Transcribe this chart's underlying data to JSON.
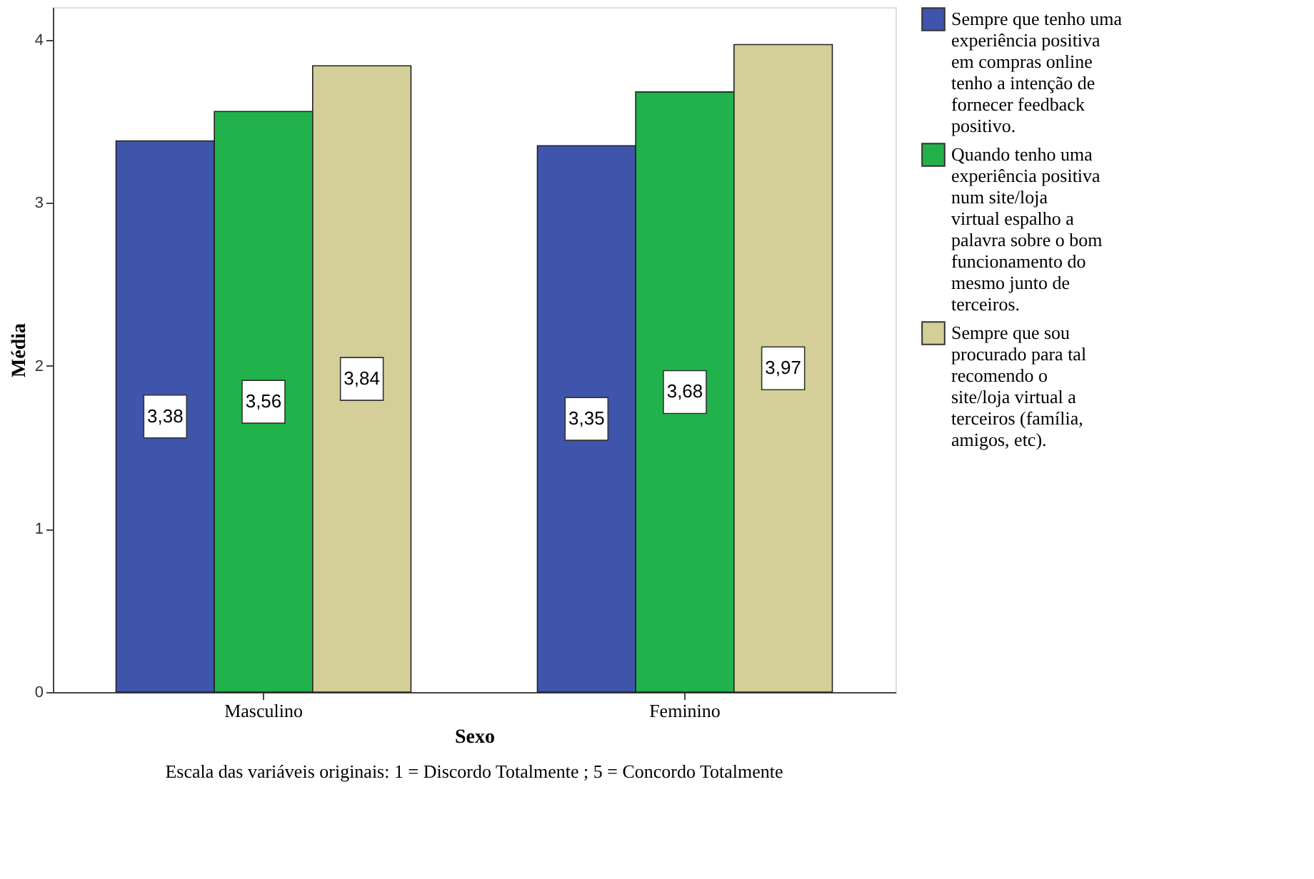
{
  "chart_data": {
    "type": "bar",
    "xlabel": "Sexo",
    "ylabel": "Média",
    "categories": [
      "Masculino",
      "Feminino"
    ],
    "series": [
      {
        "name": "Sempre que tenho uma experiência positiva em compras online tenho a intenção de fornecer feedback positivo.",
        "color": "#3e55ab",
        "values": [
          3.38,
          3.35
        ],
        "value_labels": [
          "3,38",
          "3,35"
        ]
      },
      {
        "name": "Quando tenho uma experiência positiva num site/loja virtual espalho a palavra sobre o bom funcionamento do mesmo junto de terceiros.",
        "color": "#22b24c",
        "values": [
          3.56,
          3.68
        ],
        "value_labels": [
          "3,56",
          "3,68"
        ]
      },
      {
        "name": "Sempre que sou procurado para tal recomendo o site/loja virtual a terceiros (família, amigos, etc).",
        "color": "#d4cf98",
        "values": [
          3.84,
          3.97
        ],
        "value_labels": [
          "3,84",
          "3,97"
        ]
      }
    ],
    "ylim": [
      0,
      4.2
    ],
    "yticks": [
      0,
      1,
      2,
      3,
      4
    ],
    "grid": false,
    "legend": "right",
    "annotations": [
      "Escala das variáveis originais: 1 = Discordo Totalmente ; 5 = Concordo Totalmente"
    ]
  }
}
